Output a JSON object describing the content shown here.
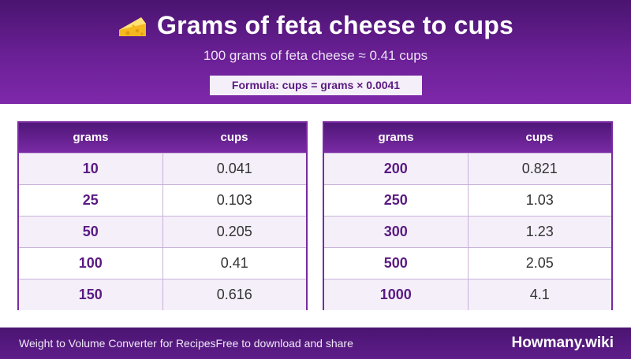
{
  "header": {
    "title": "Grams of feta cheese to cups",
    "subtitle": "100 grams of feta cheese ≈ 0.41 cups",
    "formula": "Formula: cups = grams × 0.0041",
    "icon": "cheese-icon"
  },
  "tables": [
    {
      "col_grams": "grams",
      "col_cups": "cups",
      "rows": [
        {
          "grams": "10",
          "cups": "0.041"
        },
        {
          "grams": "25",
          "cups": "0.103"
        },
        {
          "grams": "50",
          "cups": "0.205"
        },
        {
          "grams": "100",
          "cups": "0.41"
        },
        {
          "grams": "150",
          "cups": "0.616"
        }
      ]
    },
    {
      "col_grams": "grams",
      "col_cups": "cups",
      "rows": [
        {
          "grams": "200",
          "cups": "0.821"
        },
        {
          "grams": "250",
          "cups": "1.03"
        },
        {
          "grams": "300",
          "cups": "1.23"
        },
        {
          "grams": "500",
          "cups": "2.05"
        },
        {
          "grams": "1000",
          "cups": "4.1"
        }
      ]
    }
  ],
  "footer": {
    "left_text_1": "Weight to Volume Converter for Recipes",
    "left_text_2": "Free to download and share",
    "brand": "Howmany.wiki"
  },
  "colors": {
    "brand_purple": "#6b2096",
    "accent_text": "#5a1a82"
  }
}
